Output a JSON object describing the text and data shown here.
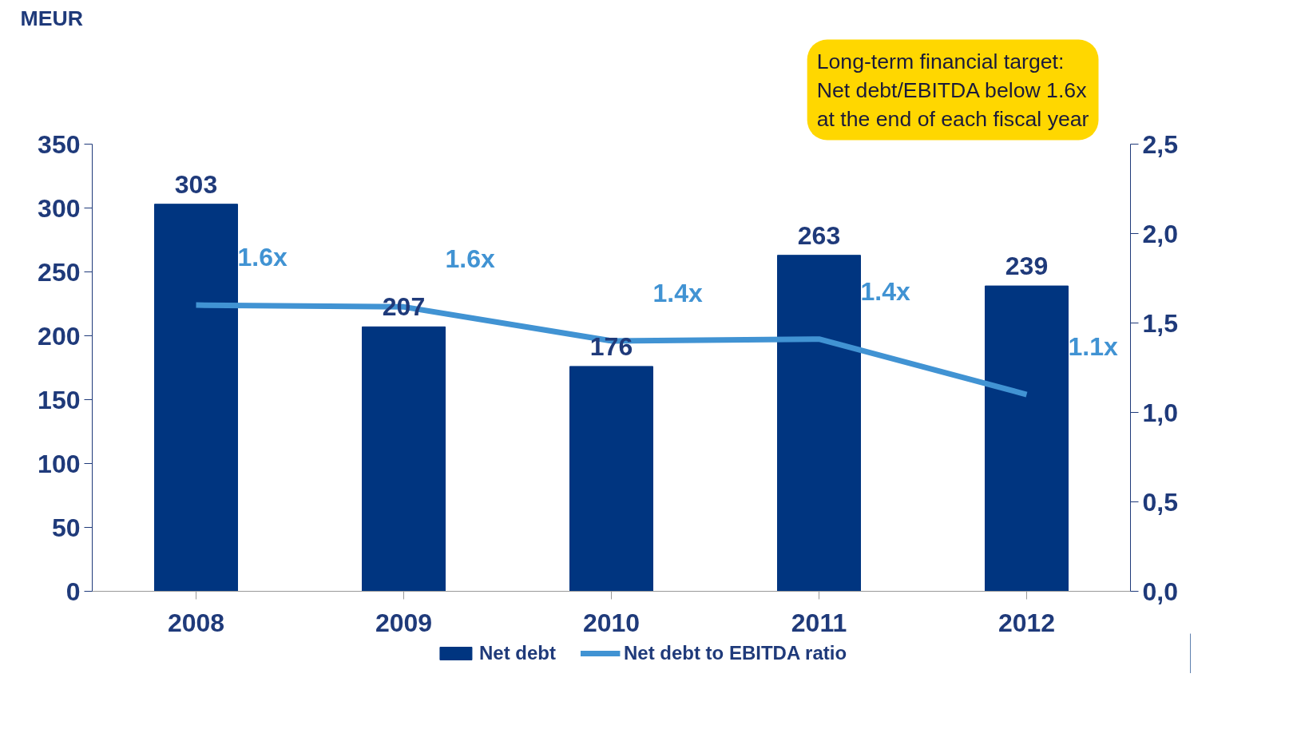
{
  "chart_data": {
    "type": "bar",
    "ylabel": "MEUR",
    "categories": [
      "2008",
      "2009",
      "2010",
      "2011",
      "2012"
    ],
    "series": [
      {
        "name": "Net debt",
        "color": "#003580",
        "values": [
          303,
          207,
          176,
          263,
          239
        ],
        "data_labels": true
      },
      {
        "name": "Net debt to EBITDA ratio",
        "type": "line",
        "axis": "y2",
        "color": "#4193d3",
        "values": [
          1.6,
          1.59,
          1.4,
          1.41,
          1.1
        ],
        "value_labels": [
          "1.6x",
          "1.6x",
          "1.4x",
          "1.4x",
          "1.1x"
        ]
      }
    ],
    "ylim": [
      0,
      350
    ],
    "yticks": [
      0,
      50,
      100,
      150,
      200,
      250,
      300,
      350
    ],
    "y2lim": [
      0,
      2.5
    ],
    "y2ticks": [
      {
        "value": 0,
        "label": "0,0"
      },
      {
        "value": 0.5,
        "label": "0,5"
      },
      {
        "value": 1,
        "label": "1,0"
      },
      {
        "value": 1.5,
        "label": "1,5"
      },
      {
        "value": 2,
        "label": "2,0"
      },
      {
        "value": 2.5,
        "label": "2,5"
      }
    ],
    "annotations": [
      "Long-term financial target:\nNet debt/EBITDA below 1.6x\nat the end of each fiscal year"
    ],
    "legend": "bottom",
    "grid": false,
    "marker": "none",
    "line_style": "solid"
  }
}
